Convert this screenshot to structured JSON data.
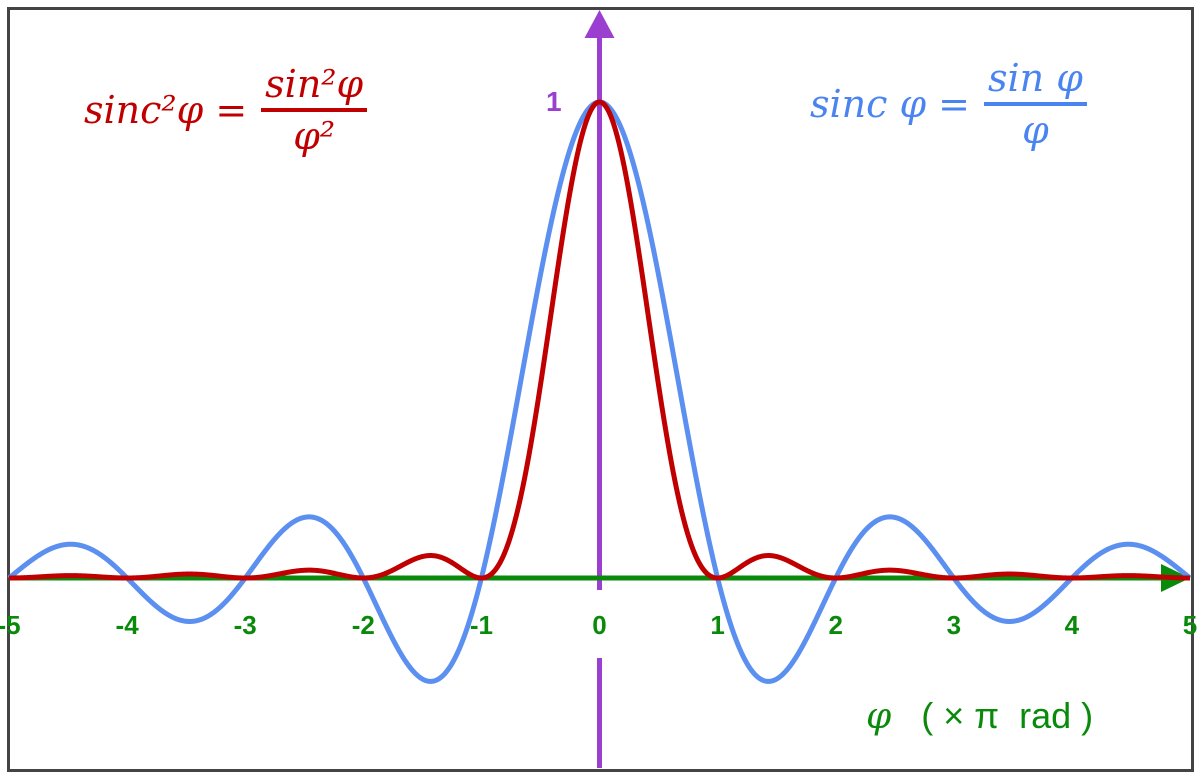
{
  "chart_data": {
    "type": "line",
    "xlim": [
      -5,
      5
    ],
    "ylim": [
      -0.217,
      1
    ],
    "x_ticks": [
      "-5",
      "-4",
      "-3",
      "-2",
      "-1",
      "0",
      "1",
      "2",
      "3",
      "4",
      "5"
    ],
    "y_ticks": [
      "1"
    ],
    "xlabel": {
      "symbol": "φ",
      "unit": "( × π  rad )"
    },
    "grid": false,
    "series": [
      {
        "name": "sinc φ = sin φ / φ",
        "formula": "sin(πx)/(πx)",
        "color": "#5b8ff0",
        "label": {
          "lhs": "sinc φ =",
          "num": "sin φ",
          "den": "φ"
        },
        "key_points": [
          {
            "x": 0,
            "y": 1
          },
          {
            "x": -1,
            "y": 0
          },
          {
            "x": 1,
            "y": 0
          },
          {
            "x": 1.43,
            "y": -0.217
          },
          {
            "x": -1.43,
            "y": -0.217
          },
          {
            "x": 2.46,
            "y": 0.128
          },
          {
            "x": -2.46,
            "y": 0.128
          }
        ]
      },
      {
        "name": "sinc²φ = sin²φ / φ²",
        "formula": "(sin(πx)/(πx))^2",
        "color": "#c00000",
        "label": {
          "lhs": "sinc²φ =",
          "num": "sin²φ",
          "den": "φ²"
        },
        "key_points": [
          {
            "x": 0,
            "y": 1
          },
          {
            "x": -1,
            "y": 0
          },
          {
            "x": 1,
            "y": 0
          },
          {
            "x": 1.43,
            "y": 0.047
          },
          {
            "x": -1.43,
            "y": 0.047
          }
        ]
      }
    ],
    "axis_colors": {
      "x": "#0a8a0a",
      "y": "#9b3fd0"
    }
  }
}
